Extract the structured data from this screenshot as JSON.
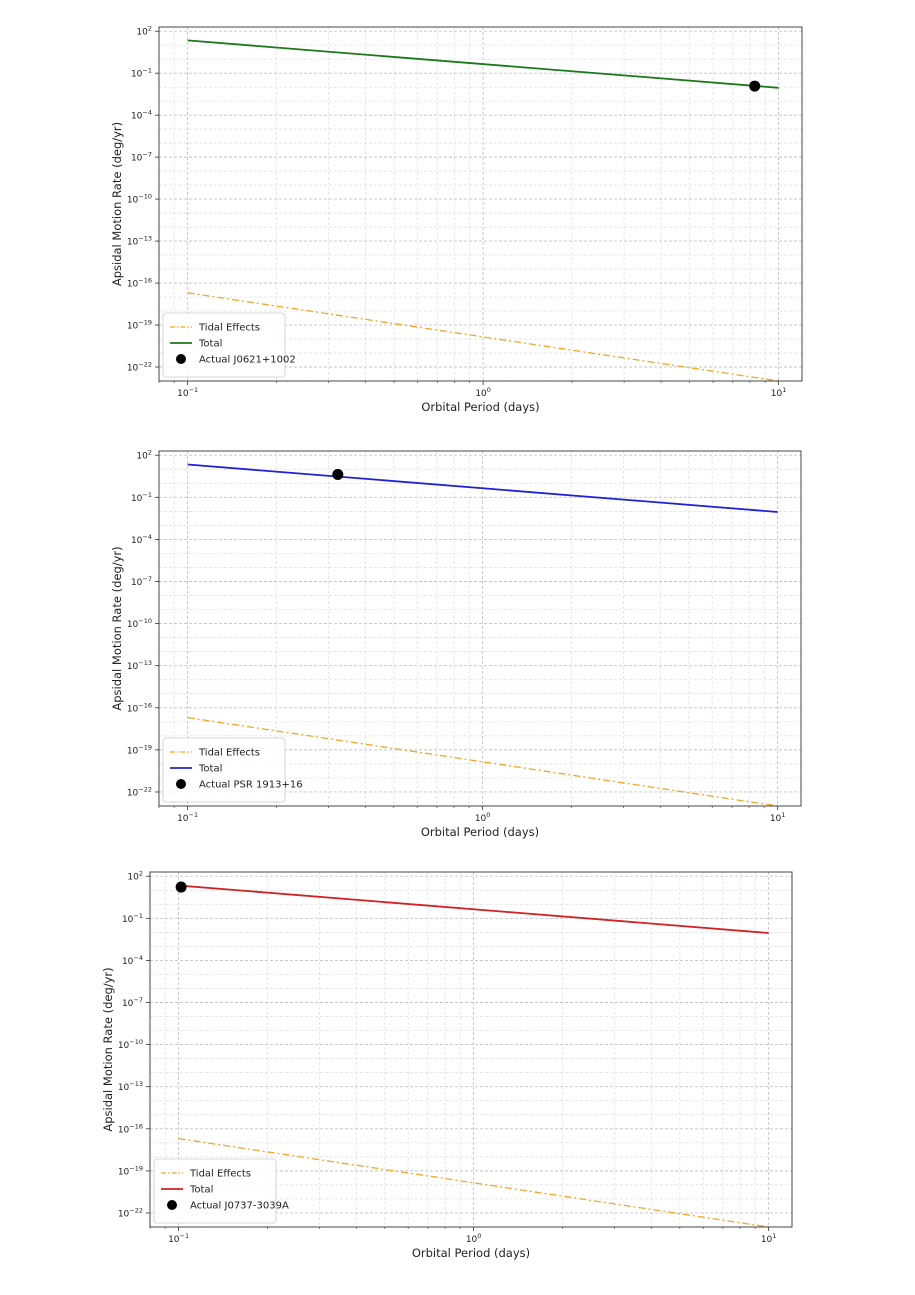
{
  "chart_data": [
    {
      "type": "line",
      "xlabel": "Orbital Period (days)",
      "ylabel": "Apsidal Motion Rate (deg/yr)",
      "xscale": "log",
      "yscale": "log",
      "xlim": [
        0.08,
        12
      ],
      "ylim": [
        1e-23,
        200
      ],
      "x_ticks": [
        0.1,
        1,
        10
      ],
      "x_tick_labels": [
        "10^-1",
        "10^0",
        "10^1"
      ],
      "y_ticks": [
        1e-22,
        1e-19,
        1e-16,
        1e-13,
        1e-10,
        1e-07,
        0.0001,
        0.1,
        100
      ],
      "y_tick_labels": [
        "10^-22",
        "10^-19",
        "10^-16",
        "10^-13",
        "10^-10",
        "10^-7",
        "10^-4",
        "10^-1",
        "10^2"
      ],
      "grid": true,
      "legend_position": "lower-left",
      "series": [
        {
          "name": "Tidal Effects",
          "style": "dashdot",
          "color": "#f5a623",
          "x": [
            0.1,
            10
          ],
          "y": [
            2e-17,
            1e-23
          ]
        },
        {
          "name": "Total",
          "style": "solid",
          "color": "#1a7a1a",
          "x": [
            0.1,
            10
          ],
          "y": [
            22,
            0.009
          ]
        },
        {
          "name": "Actual J0621+1002",
          "style": "marker",
          "color": "#000000",
          "x": [
            8.3
          ],
          "y": [
            0.012
          ]
        }
      ]
    },
    {
      "type": "line",
      "xlabel": "Orbital Period (days)",
      "ylabel": "Apsidal Motion Rate (deg/yr)",
      "xscale": "log",
      "yscale": "log",
      "xlim": [
        0.08,
        12
      ],
      "ylim": [
        1e-23,
        200
      ],
      "x_ticks": [
        0.1,
        1,
        10
      ],
      "x_tick_labels": [
        "10^-1",
        "10^0",
        "10^1"
      ],
      "y_ticks": [
        1e-22,
        1e-19,
        1e-16,
        1e-13,
        1e-10,
        1e-07,
        0.0001,
        0.1,
        100
      ],
      "y_tick_labels": [
        "10^-22",
        "10^-19",
        "10^-16",
        "10^-13",
        "10^-10",
        "10^-7",
        "10^-4",
        "10^-1",
        "10^2"
      ],
      "grid": true,
      "legend_position": "lower-left",
      "series": [
        {
          "name": "Tidal Effects",
          "style": "dashdot",
          "color": "#f5a623",
          "x": [
            0.1,
            10
          ],
          "y": [
            2e-17,
            1e-23
          ]
        },
        {
          "name": "Total",
          "style": "solid",
          "color": "#1e22d8",
          "x": [
            0.1,
            10
          ],
          "y": [
            22,
            0.009
          ]
        },
        {
          "name": "Actual PSR 1913+16",
          "style": "marker",
          "color": "#000000",
          "x": [
            0.323
          ],
          "y": [
            4.2
          ]
        }
      ]
    },
    {
      "type": "line",
      "xlabel": "Orbital Period (days)",
      "ylabel": "Apsidal Motion Rate (deg/yr)",
      "xscale": "log",
      "yscale": "log",
      "xlim": [
        0.08,
        12
      ],
      "ylim": [
        1e-23,
        200
      ],
      "x_ticks": [
        0.1,
        1,
        10
      ],
      "x_tick_labels": [
        "10^-1",
        "10^0",
        "10^1"
      ],
      "y_ticks": [
        1e-22,
        1e-19,
        1e-16,
        1e-13,
        1e-10,
        1e-07,
        0.0001,
        0.1,
        100
      ],
      "y_tick_labels": [
        "10^-22",
        "10^-19",
        "10^-16",
        "10^-13",
        "10^-10",
        "10^-7",
        "10^-4",
        "10^-1",
        "10^2"
      ],
      "grid": true,
      "legend_position": "lower-left",
      "series": [
        {
          "name": "Tidal Effects",
          "style": "dashdot",
          "color": "#f5a623",
          "x": [
            0.1,
            10
          ],
          "y": [
            2e-17,
            1e-23
          ]
        },
        {
          "name": "Total",
          "style": "solid",
          "color": "#d42020",
          "x": [
            0.1,
            10
          ],
          "y": [
            22,
            0.009
          ]
        },
        {
          "name": "Actual J0737-3039A",
          "style": "marker",
          "color": "#000000",
          "x": [
            0.102
          ],
          "y": [
            16.9
          ]
        }
      ]
    }
  ]
}
